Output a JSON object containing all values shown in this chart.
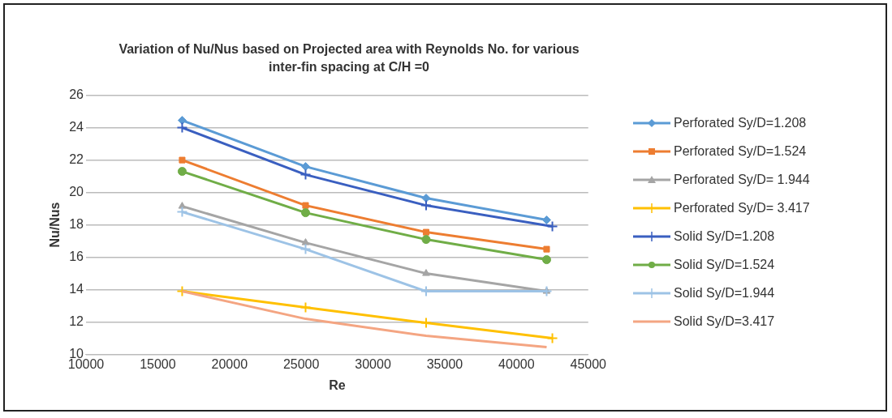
{
  "chart_data": {
    "type": "line",
    "title": "Variation of Nu/Nus based on Projected area with Reynolds No. for various inter-fin spacing at C/H =0",
    "xlabel": "Re",
    "ylabel": "Nu/Nus",
    "x": [
      16700,
      25300,
      33700,
      42100
    ],
    "xlim": [
      10000,
      45000
    ],
    "xticks": [
      10000,
      15000,
      20000,
      25000,
      30000,
      35000,
      40000,
      45000
    ],
    "ylim": [
      10,
      26
    ],
    "yticks": [
      10,
      12,
      14,
      16,
      18,
      20,
      22,
      24,
      26
    ],
    "grid": "y",
    "legend": "right",
    "line_style": "solid",
    "series": [
      {
        "name": "Perforated Sy/D=1.208",
        "color": "#5b9bd5",
        "marker": "diamond",
        "values": [
          24.45,
          21.6,
          19.65,
          18.3
        ]
      },
      {
        "name": "Perforated Sy/D=1.524",
        "color": "#ed7d31",
        "marker": "square",
        "values": [
          22.0,
          19.2,
          17.55,
          16.5
        ]
      },
      {
        "name": "Perforated Sy/D= 1.944",
        "color": "#a5a5a5",
        "marker": "triangle",
        "values": [
          19.15,
          16.9,
          15.0,
          13.9
        ]
      },
      {
        "name": "Perforated Sy/D= 3.417",
        "color": "#ffc000",
        "marker": "cross",
        "x": [
          16700,
          25300,
          33700,
          42500
        ],
        "values": [
          13.9,
          12.9,
          11.95,
          11.0
        ]
      },
      {
        "name": "Solid Sy/D=1.208",
        "color": "#3a5fc0",
        "marker": "cross",
        "x": [
          16700,
          25300,
          33700,
          42500
        ],
        "values": [
          24.0,
          21.1,
          19.2,
          17.9
        ]
      },
      {
        "name": "Solid Sy/D=1.524",
        "color": "#70ad47",
        "marker": "circle",
        "values": [
          21.3,
          18.75,
          17.1,
          15.85
        ]
      },
      {
        "name": "Solid Sy/D=1.944",
        "color": "#9dc3e6",
        "marker": "cross",
        "values": [
          18.8,
          16.5,
          13.9,
          13.9
        ]
      },
      {
        "name": "Solid Sy/D=3.417",
        "color": "#f4a582",
        "marker": "none",
        "values": [
          13.9,
          12.2,
          11.15,
          10.45
        ]
      }
    ]
  }
}
